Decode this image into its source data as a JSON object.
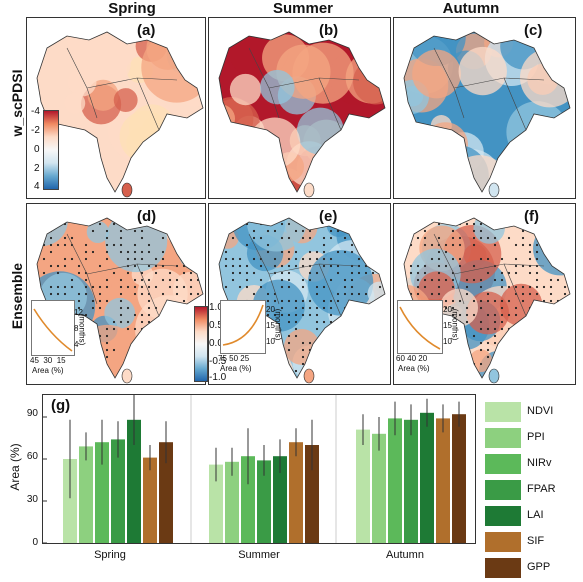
{
  "columns": [
    "Spring",
    "Summer",
    "Autumn"
  ],
  "rows": [
    "w_scPDSI",
    "Ensemble"
  ],
  "panel_letters": [
    "(a)",
    "(b)",
    "(c)",
    "(d)",
    "(e)",
    "(f)",
    "(g)"
  ],
  "colorbar_top": {
    "ticks": [
      "-4",
      "-2",
      "0",
      "2",
      "4"
    ]
  },
  "colorbar_bottom": {
    "ticks": [
      "1.0",
      "0.5",
      "0.0",
      "-0.5",
      "-1.0"
    ]
  },
  "insets": [
    {
      "x_ticks": [
        "45",
        "30",
        "15"
      ],
      "x_label": "Area (%)",
      "y_ticks": [
        "4",
        "8",
        "12"
      ],
      "y_label": "(months)"
    },
    {
      "x_ticks": [
        "75",
        "50",
        "25"
      ],
      "x_label": "Area (%)",
      "y_ticks": [
        "10",
        "15",
        "20"
      ],
      "y_label": "(months)"
    },
    {
      "x_ticks": [
        "60",
        "40",
        "20"
      ],
      "x_label": "Area (%)",
      "y_ticks": [
        "10",
        "15",
        "20"
      ],
      "y_label": "(months)"
    }
  ],
  "chart_data": {
    "type": "bar",
    "ylabel": "Area (%)",
    "ylim": [
      0,
      100
    ],
    "yticks": [
      "0",
      "30",
      "60",
      "90"
    ],
    "categories": [
      "Spring",
      "Summer",
      "Autumn"
    ],
    "series": [
      {
        "name": "NDVI",
        "color": "#b9e3a7",
        "values": [
          60,
          56,
          81
        ],
        "err": [
          28,
          12,
          11
        ]
      },
      {
        "name": "PPI",
        "color": "#8dd07f",
        "values": [
          69,
          58,
          78
        ],
        "err": [
          10,
          10,
          12
        ]
      },
      {
        "name": "NIRv",
        "color": "#5cb95a",
        "values": [
          72,
          62,
          89
        ],
        "err": [
          16,
          20,
          12
        ]
      },
      {
        "name": "FPAR",
        "color": "#3a9b46",
        "values": [
          74,
          59,
          88
        ],
        "err": [
          13,
          11,
          11
        ]
      },
      {
        "name": "LAI",
        "color": "#1e7a35",
        "values": [
          88,
          62,
          93
        ],
        "err": [
          18,
          12,
          10
        ]
      },
      {
        "name": "SIF",
        "color": "#b06f2c",
        "values": [
          61,
          72,
          89
        ],
        "err": [
          9,
          10,
          10
        ]
      },
      {
        "name": "GPP",
        "color": "#6b3a14",
        "values": [
          72,
          70,
          92
        ],
        "err": [
          15,
          18,
          9
        ]
      }
    ]
  }
}
